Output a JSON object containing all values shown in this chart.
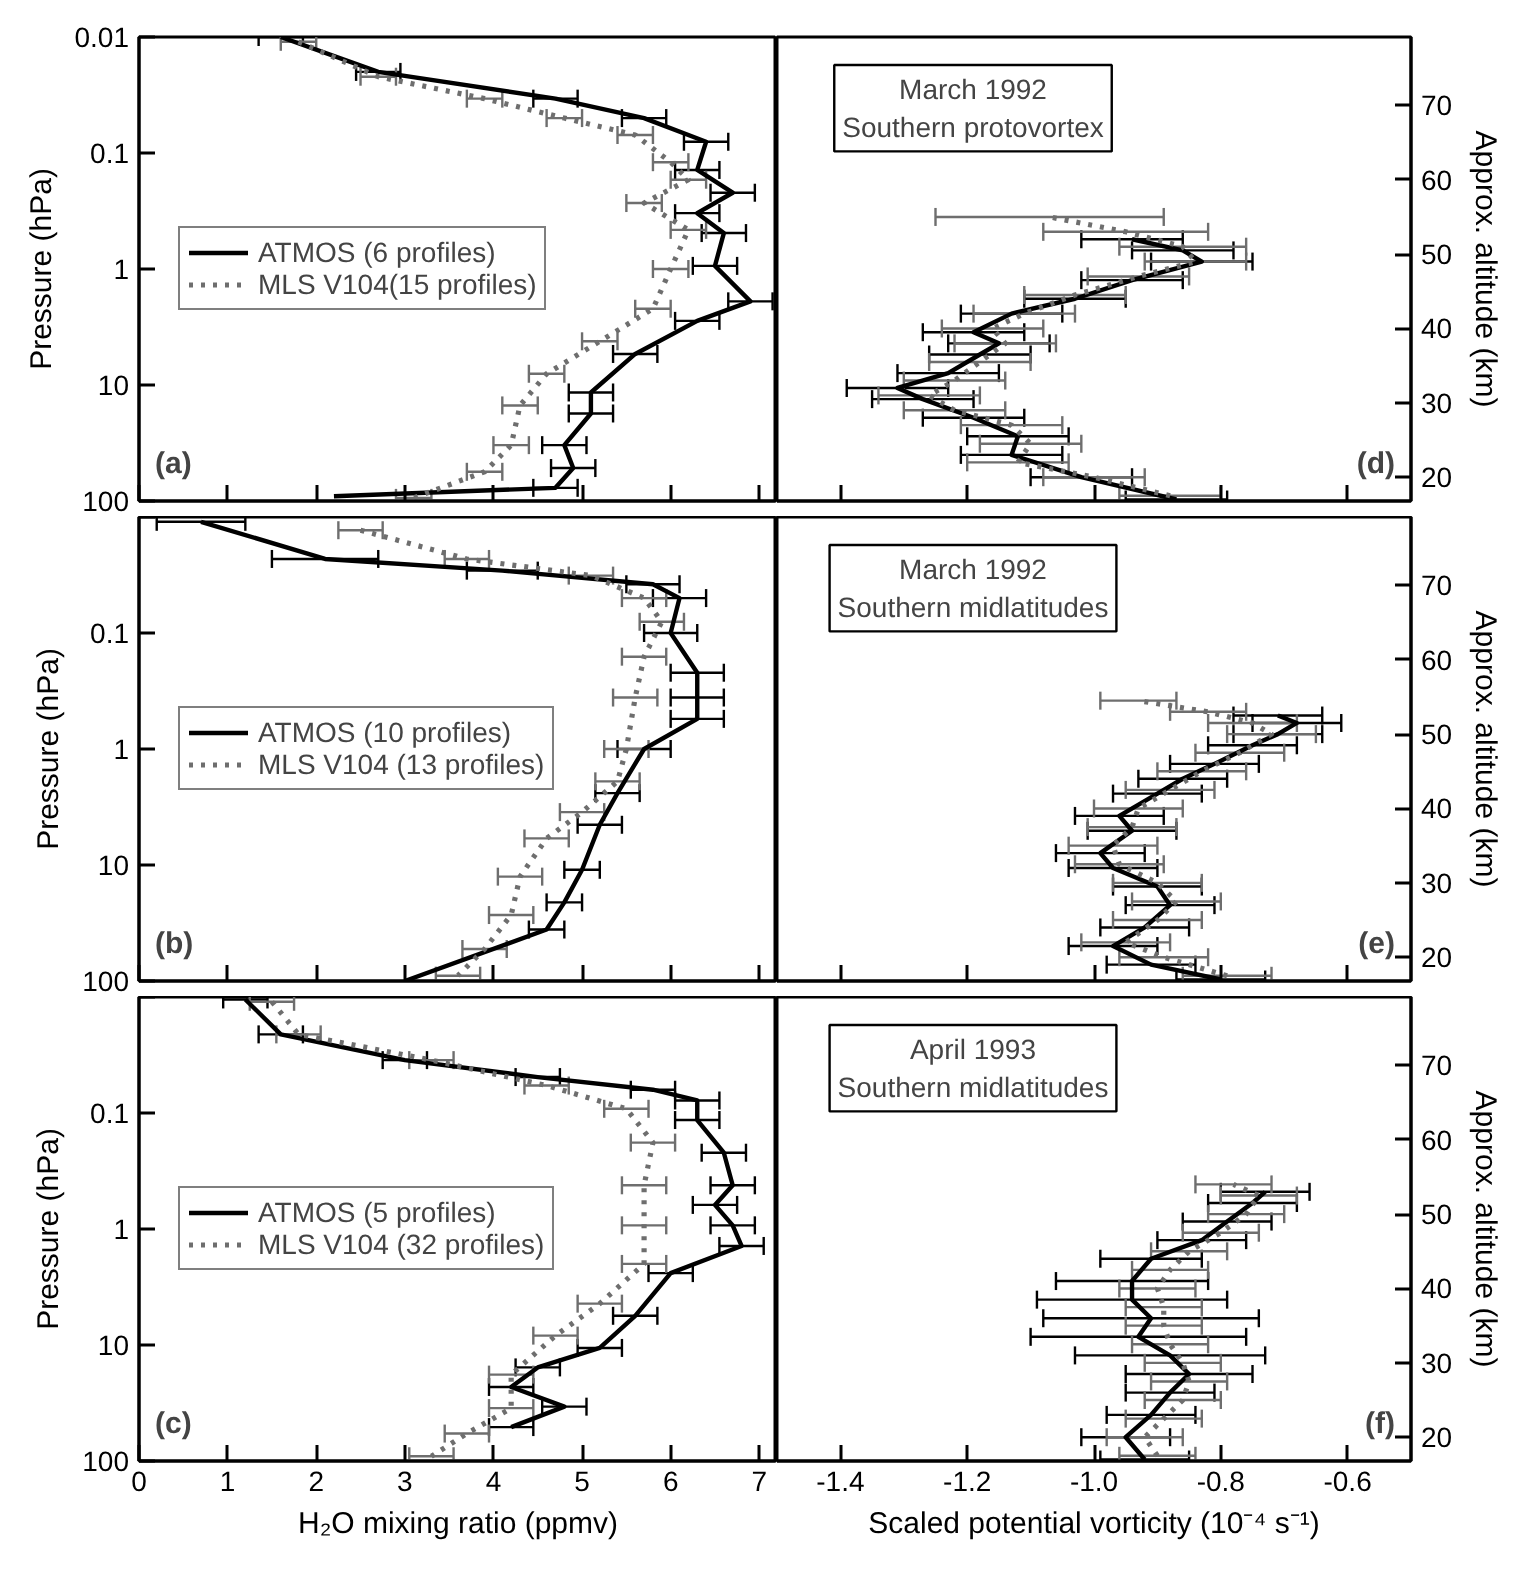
{
  "chart_data": [
    {
      "type": "line",
      "ylabel": "Pressure (hPa)",
      "log": "y",
      "xlim": [
        0,
        7.2
      ],
      "ylim": [
        100,
        0.01
      ],
      "xticks": [
        0,
        1,
        2,
        3,
        4,
        5,
        6,
        7
      ],
      "yticks": [
        0.01,
        0.1,
        1,
        10,
        100
      ],
      "tick_labels": "y",
      "legend": "left",
      "annotations": [
        "(a)"
      ],
      "series": [
        {
          "name": "ATMOS (6 profiles)",
          "color": "#000000",
          "line_style": "solid",
          "x": [
            1.6,
            2.7,
            4.7,
            5.7,
            6.4,
            6.3,
            6.7,
            6.3,
            6.6,
            6.5,
            6.9,
            6.3,
            5.6,
            5.1,
            5.1,
            4.8,
            4.9,
            4.7,
            2.2
          ],
          "values": [
            0.01,
            0.02,
            0.034,
            0.05,
            0.08,
            0.14,
            0.22,
            0.33,
            0.49,
            0.94,
            1.9,
            2.8,
            5.4,
            11.6,
            17.6,
            33,
            52,
            77,
            91
          ],
          "xerrors": [
            0.25,
            0.25,
            0.25,
            0.25,
            0.25,
            0.25,
            0.25,
            0.25,
            0.25,
            0.25,
            0.25,
            0.25,
            0.25,
            0.25,
            0.25,
            0.25,
            0.25,
            0.25,
            null
          ]
        },
        {
          "name": "MLS V104(15 profiles)",
          "color": "#6e6e6e",
          "line_style": "dotted",
          "x": [
            1.8,
            2.7,
            3.9,
            4.8,
            5.6,
            6.0,
            6.2,
            5.7,
            6.2,
            6.0,
            5.8,
            5.2,
            4.6,
            4.3,
            4.2,
            3.9,
            3.1
          ],
          "values": [
            0.011,
            0.022,
            0.034,
            0.05,
            0.07,
            0.12,
            0.17,
            0.27,
            0.46,
            1.0,
            2.2,
            4.2,
            8.0,
            15,
            33,
            56,
            94
          ],
          "xerrors": [
            0.2,
            0.2,
            0.2,
            0.2,
            0.2,
            0.2,
            0.2,
            0.2,
            0.2,
            0.2,
            0.2,
            0.2,
            0.2,
            0.2,
            0.2,
            0.2,
            0.2
          ]
        }
      ]
    },
    {
      "type": "line",
      "ylabel": "Approx. altitude (km)",
      "xlim": [
        -1.5,
        -0.5
      ],
      "ylim": [
        16.8,
        79.2
      ],
      "xticks": [
        -1.4,
        -1.2,
        -1,
        -0.8,
        -0.6
      ],
      "yticks": [
        20,
        30,
        40,
        50,
        60,
        70
      ],
      "tick_labels": "y",
      "annotations": [
        "March 1992\nSouthern protovortex",
        "(d)"
      ],
      "series": [
        {
          "color": "#000000",
          "line_style": "solid",
          "x": [
            -0.87,
            -1.02,
            -1.13,
            -1.12,
            -1.19,
            -1.27,
            -1.31,
            -1.23,
            -1.18,
            -1.15,
            -1.19,
            -1.13,
            -1.03,
            -0.94,
            -0.83,
            -0.86,
            -0.94
          ],
          "values": [
            17,
            20,
            23,
            25.5,
            28,
            30.5,
            32,
            34,
            36.5,
            38,
            39.5,
            42,
            44,
            46.5,
            49,
            50.5,
            52
          ],
          "xerrors": [
            0.08,
            0.08,
            0.08,
            0.08,
            0.08,
            0.08,
            0.08,
            0.08,
            0.08,
            0.08,
            0.08,
            0.08,
            0.08,
            0.08,
            0.08,
            0.08,
            0.08
          ]
        },
        {
          "color": "#6e6e6e",
          "line_style": "dotted",
          "x": [
            -0.88,
            -1.0,
            -1.12,
            -1.1,
            -1.13,
            -1.22,
            -1.26,
            -1.22,
            -1.18,
            -1.14,
            -1.16,
            -1.11,
            -1.03,
            -0.93,
            -0.84,
            -0.86,
            -0.95,
            -1.07
          ],
          "values": [
            17.5,
            20,
            22,
            24.5,
            27,
            29,
            31,
            33,
            35.5,
            38,
            40,
            42,
            44.5,
            47,
            49,
            51,
            53,
            55
          ],
          "xerrors": [
            0.08,
            0.08,
            0.08,
            0.08,
            0.08,
            0.08,
            0.08,
            0.08,
            0.08,
            0.08,
            0.08,
            0.08,
            0.08,
            0.08,
            0.08,
            0.1,
            0.13,
            0.18
          ]
        }
      ]
    },
    {
      "type": "line",
      "ylabel": "Pressure (hPa)",
      "log": "y",
      "xlim": [
        0,
        7.2
      ],
      "ylim": [
        100,
        0.01
      ],
      "xticks": [
        0,
        1,
        2,
        3,
        4,
        5,
        6,
        7
      ],
      "yticks": [
        {
          "value": 0.01,
          "label": null
        },
        0.1,
        1,
        10,
        100
      ],
      "tick_labels": "y",
      "legend": "left",
      "annotations": [
        "(b)"
      ],
      "series": [
        {
          "name": "ATMOS (10 profiles)",
          "color": "#000000",
          "line_style": "solid",
          "x": [
            0.7,
            2.1,
            4.1,
            5.8,
            6.1,
            6.0,
            6.3,
            6.3,
            6.3,
            5.7,
            5.4,
            5.2,
            5.0,
            4.8,
            4.6,
            3.0
          ],
          "values": [
            0.011,
            0.023,
            0.029,
            0.038,
            0.05,
            0.1,
            0.22,
            0.36,
            0.55,
            1.0,
            2.4,
            4.5,
            11,
            21,
            36,
            100
          ],
          "xerrors": [
            0.5,
            0.6,
            0.4,
            0.3,
            0.3,
            0.3,
            0.3,
            0.3,
            0.3,
            0.3,
            0.25,
            0.25,
            0.2,
            0.2,
            0.2,
            null
          ]
        },
        {
          "name": "MLS V104 (13 profiles)",
          "color": "#6e6e6e",
          "line_style": "dotted",
          "x": [
            2.5,
            3.7,
            5.1,
            5.7,
            5.9,
            5.7,
            5.6,
            5.5,
            5.4,
            5.0,
            4.6,
            4.3,
            4.2,
            3.9,
            3.6
          ],
          "values": [
            0.013,
            0.023,
            0.032,
            0.05,
            0.08,
            0.16,
            0.36,
            1.0,
            1.9,
            3.5,
            5.9,
            12.6,
            27,
            53,
            90
          ],
          "xerrors": [
            0.25,
            0.25,
            0.25,
            0.25,
            0.25,
            0.25,
            0.25,
            0.25,
            0.25,
            0.25,
            0.25,
            0.25,
            0.25,
            0.25,
            0.25
          ]
        }
      ]
    },
    {
      "type": "line",
      "ylabel": "Approx. altitude (km)",
      "xlim": [
        -1.5,
        -0.5
      ],
      "ylim": [
        16.8,
        79.2
      ],
      "xticks": [
        -1.4,
        -1.2,
        -1,
        -0.8,
        -0.6
      ],
      "yticks": [
        20,
        30,
        40,
        50,
        60,
        70
      ],
      "tick_labels": "y",
      "annotations": [
        "March 1992\nSouthern midlatitudes",
        "(e)"
      ],
      "series": [
        {
          "color": "#000000",
          "line_style": "solid",
          "x": [
            -0.8,
            -0.91,
            -0.97,
            -0.92,
            -0.88,
            -0.9,
            -0.97,
            -0.99,
            -0.94,
            -0.96,
            -0.9,
            -0.86,
            -0.81,
            -0.75,
            -0.71,
            -0.68,
            -0.71
          ],
          "values": [
            17,
            19,
            21.5,
            24,
            27,
            29.5,
            32,
            34,
            37,
            39,
            42,
            44,
            46,
            48.5,
            50,
            51.5,
            52.5
          ],
          "xerrors": [
            0.07,
            0.07,
            0.07,
            0.07,
            0.07,
            0.07,
            0.07,
            0.07,
            0.07,
            0.07,
            0.07,
            0.07,
            0.07,
            0.07,
            0.07,
            0.07,
            0.07
          ]
        },
        {
          "color": "#6e6e6e",
          "line_style": "dotted",
          "x": [
            -0.79,
            -0.89,
            -0.95,
            -0.9,
            -0.87,
            -0.9,
            -0.96,
            -0.97,
            -0.94,
            -0.93,
            -0.88,
            -0.83,
            -0.77,
            -0.72,
            -0.75,
            -0.82,
            -0.93
          ],
          "values": [
            17.5,
            20,
            22,
            25,
            27.5,
            30,
            32.5,
            35,
            37.5,
            40,
            42.5,
            45,
            47.5,
            50,
            51.5,
            53,
            54.5
          ],
          "xerrors": [
            0.07,
            0.07,
            0.07,
            0.07,
            0.07,
            0.07,
            0.07,
            0.07,
            0.07,
            0.07,
            0.07,
            0.07,
            0.07,
            0.07,
            0.07,
            0.06,
            0.06
          ]
        }
      ]
    },
    {
      "type": "line",
      "xlabel": "H₂O mixing ratio (ppmv)",
      "ylabel": "Pressure (hPa)",
      "log": "y",
      "xlim": [
        0,
        7.2
      ],
      "ylim": [
        100,
        0.01
      ],
      "xticks": [
        0,
        1,
        2,
        3,
        4,
        5,
        6,
        7
      ],
      "yticks": [
        {
          "value": 0.01,
          "label": null
        },
        0.1,
        1,
        10,
        100
      ],
      "legend": "left",
      "annotations": [
        "(c)"
      ],
      "series": [
        {
          "name": "ATMOS (5 profiles)",
          "color": "#000000",
          "line_style": "solid",
          "x": [
            1.2,
            1.6,
            3.0,
            4.5,
            5.8,
            6.3,
            6.3,
            6.6,
            6.7,
            6.5,
            6.7,
            6.8,
            6.0,
            5.6,
            5.2,
            4.5,
            4.2,
            4.8,
            4.2
          ],
          "values": [
            0.0105,
            0.021,
            0.035,
            0.049,
            0.063,
            0.078,
            0.115,
            0.22,
            0.42,
            0.62,
            0.93,
            1.4,
            2.4,
            5.6,
            10.6,
            15.6,
            23,
            34,
            51
          ],
          "xerrors": [
            0.25,
            0.25,
            0.25,
            0.25,
            0.25,
            0.25,
            0.25,
            0.25,
            0.25,
            0.25,
            0.25,
            0.25,
            0.25,
            0.25,
            0.25,
            0.25,
            0.25,
            0.25,
            0.25
          ]
        },
        {
          "name": "MLS V104 (32 profiles)",
          "color": "#6e6e6e",
          "line_style": "dotted",
          "x": [
            1.5,
            1.8,
            3.3,
            4.6,
            5.5,
            5.8,
            5.7,
            5.7,
            5.7,
            5.2,
            4.7,
            4.2,
            4.2,
            3.7,
            3.3
          ],
          "values": [
            0.011,
            0.021,
            0.035,
            0.058,
            0.092,
            0.18,
            0.42,
            0.93,
            2.0,
            4.4,
            8.3,
            18,
            35,
            58,
            91
          ],
          "xerrors": [
            0.25,
            0.25,
            0.25,
            0.25,
            0.25,
            0.25,
            0.25,
            0.25,
            0.25,
            0.25,
            0.25,
            0.25,
            0.25,
            0.25,
            0.25
          ]
        }
      ]
    },
    {
      "type": "line",
      "xlabel": "Scaled potential vorticity (10⁻⁴ s⁻¹)",
      "ylabel": "Approx. altitude (km)",
      "xlim": [
        -1.5,
        -0.5
      ],
      "ylim": [
        16.8,
        79.2
      ],
      "xticks": [
        {
          "value": -1.4,
          "label": "-1.4"
        },
        {
          "value": -1.2,
          "label": "-1.2"
        },
        {
          "value": -1,
          "label": "-1.0"
        },
        {
          "value": -0.8,
          "label": "-0.8"
        },
        {
          "value": -0.6,
          "label": "-0.6"
        }
      ],
      "yticks": [
        20,
        30,
        40,
        50,
        60,
        70
      ],
      "annotations": [
        "April 1993\nSouthern midlatitudes",
        "(f)"
      ],
      "series": [
        {
          "color": "#000000",
          "line_style": "solid",
          "x": [
            -0.92,
            -0.95,
            -0.91,
            -0.88,
            -0.85,
            -0.88,
            -0.93,
            -0.91,
            -0.94,
            -0.94,
            -0.91,
            -0.83,
            -0.79,
            -0.75,
            -0.73
          ],
          "values": [
            17,
            20,
            23,
            26,
            28.5,
            31,
            33.5,
            36,
            38.5,
            41,
            44,
            46.5,
            49,
            51.5,
            53
          ],
          "xerrors": [
            0.07,
            0.07,
            0.07,
            0.07,
            0.1,
            0.15,
            0.17,
            0.17,
            0.15,
            0.12,
            0.08,
            0.07,
            0.07,
            0.07,
            0.07
          ]
        },
        {
          "color": "#6e6e6e",
          "line_style": "dotted",
          "x": [
            -0.9,
            -0.92,
            -0.89,
            -0.86,
            -0.85,
            -0.86,
            -0.88,
            -0.89,
            -0.89,
            -0.9,
            -0.88,
            -0.85,
            -0.8,
            -0.76,
            -0.74,
            -0.78
          ],
          "values": [
            17.5,
            20,
            22.5,
            25,
            27.5,
            30,
            32.5,
            35,
            37.5,
            40,
            42.5,
            45,
            47.5,
            50,
            52.5,
            54
          ],
          "xerrors": [
            0.06,
            0.06,
            0.06,
            0.06,
            0.06,
            0.06,
            0.06,
            0.06,
            0.06,
            0.06,
            0.06,
            0.06,
            0.06,
            0.06,
            0.06,
            0.06
          ]
        }
      ]
    }
  ]
}
